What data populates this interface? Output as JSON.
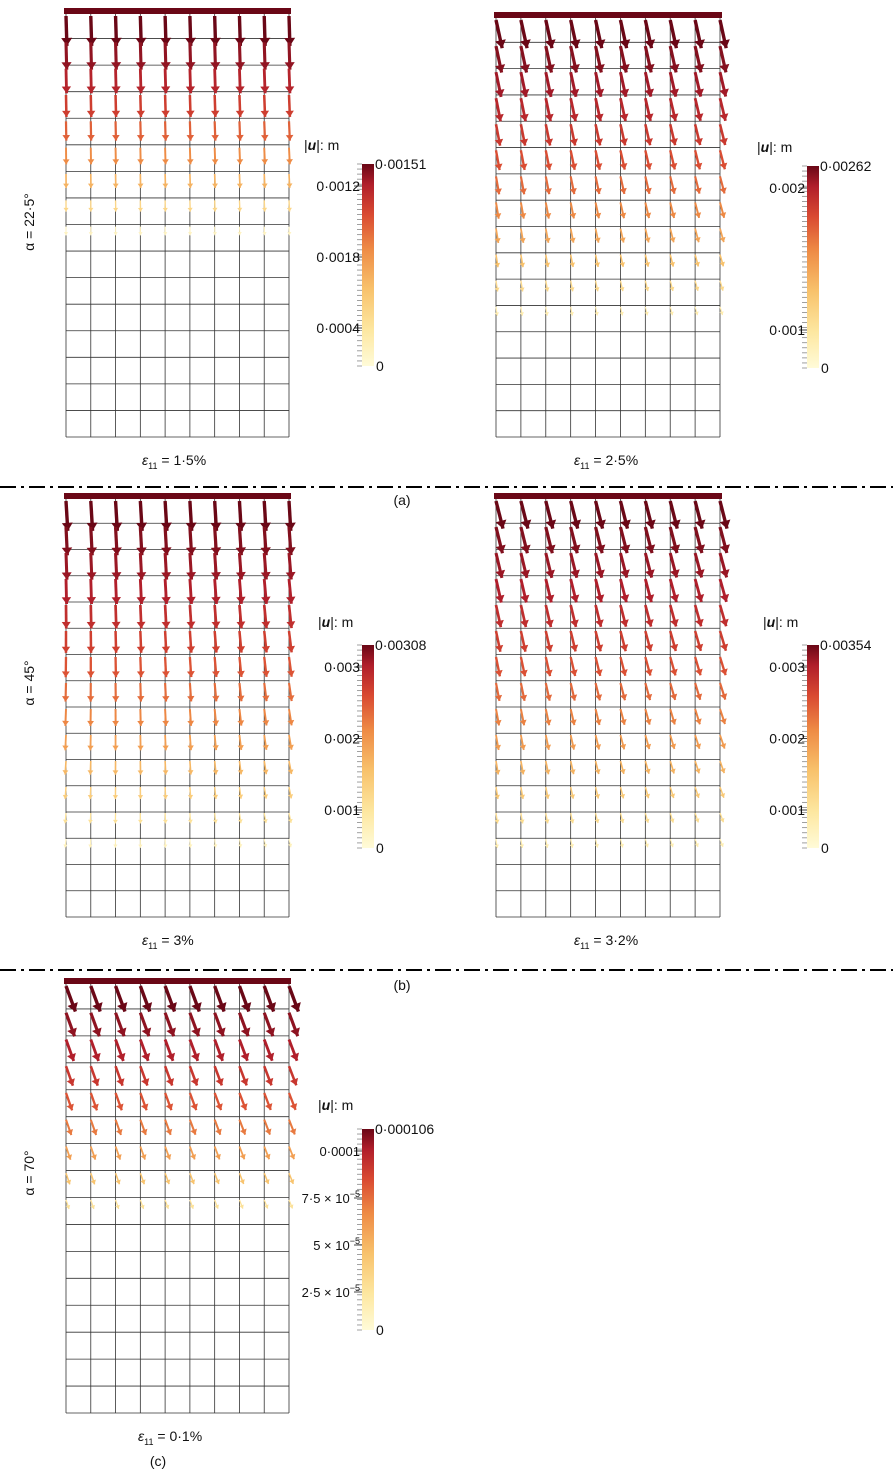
{
  "palette": {
    "colormap": [
      "#fffbd8",
      "#fde7a0",
      "#f8c26c",
      "#ee8b45",
      "#d94a32",
      "#b01e2b",
      "#6a0716"
    ],
    "grid": "#333333",
    "separator": "#000000"
  },
  "rows": [
    {
      "row_label": "α = 22·5°",
      "panel_label": "(a)",
      "panels": [
        {
          "legend_title_bold": "u",
          "legend_title_rest": ": m",
          "max_label": "0·00151",
          "ticks": [
            "0·0012",
            "0·0018",
            "0·0004",
            "0"
          ],
          "strain": "1·5%",
          "tilt": 0.05,
          "depth_fraction": 0.55,
          "spread": 0.1
        },
        {
          "legend_title_bold": "u",
          "legend_title_rest": ": m",
          "max_label": "0·00262",
          "ticks": [
            "0·002",
            "0·001",
            "0"
          ],
          "strain": "2·5%",
          "tilt": 0.35,
          "depth_fraction": 0.78,
          "spread": 0.25
        }
      ]
    },
    {
      "row_label": "α = 45°",
      "panel_label": "(b)",
      "panels": [
        {
          "legend_title_bold": "u",
          "legend_title_rest": ": m",
          "max_label": "0·00308",
          "ticks": [
            "0·003",
            "0·002",
            "0·001",
            "0"
          ],
          "strain": "3%",
          "tilt": 0.1,
          "depth_fraction": 0.9,
          "spread": 0.55
        },
        {
          "legend_title_bold": "u",
          "legend_title_rest": ": m",
          "max_label": "0·00354",
          "ticks": [
            "0·003",
            "0·002",
            "0·001",
            "0"
          ],
          "strain": "3·2%",
          "tilt": 0.4,
          "depth_fraction": 0.92,
          "spread": 0.35
        }
      ]
    },
    {
      "row_label": "α = 70°",
      "panel_label": "(c)",
      "panels": [
        {
          "legend_title_bold": "u",
          "legend_title_rest": ": m",
          "max_label": "0·000106",
          "ticks": [
            "0·0001",
            "7·5 × 10",
            "5 × 10",
            "2·5 × 10",
            "0"
          ],
          "tick_exponent": "−5",
          "strain": "0·1%",
          "tilt": 0.55,
          "depth_fraction": 0.6,
          "spread": 0.1
        }
      ]
    }
  ]
}
